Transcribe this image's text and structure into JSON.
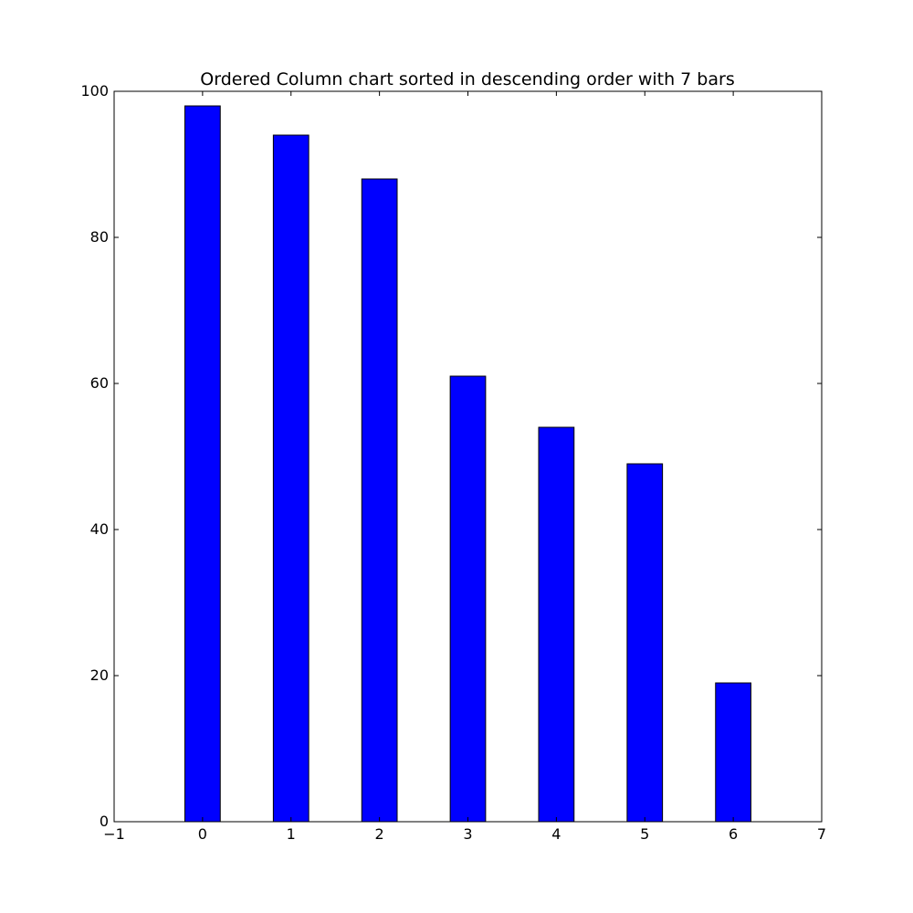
{
  "chart_data": {
    "type": "bar",
    "title": "Ordered Column chart sorted in descending order with 7 bars",
    "xlabel": "",
    "ylabel": "",
    "categories": [
      0,
      1,
      2,
      3,
      4,
      5,
      6
    ],
    "values": [
      98,
      94,
      88,
      61,
      54,
      49,
      19
    ],
    "bar_width": 0.4,
    "xlim": [
      -1,
      7
    ],
    "ylim": [
      0,
      100
    ],
    "xticks": [
      -1,
      0,
      1,
      2,
      3,
      4,
      5,
      6,
      7
    ],
    "xtick_labels": [
      "−1",
      "0",
      "1",
      "2",
      "3",
      "4",
      "5",
      "6",
      "7"
    ],
    "yticks": [
      0,
      20,
      40,
      60,
      80,
      100
    ],
    "ytick_labels": [
      "0",
      "20",
      "40",
      "60",
      "80",
      "100"
    ],
    "grid": false,
    "legend": "none",
    "bar_color": "#0000ff",
    "edge_color": "#000000"
  }
}
